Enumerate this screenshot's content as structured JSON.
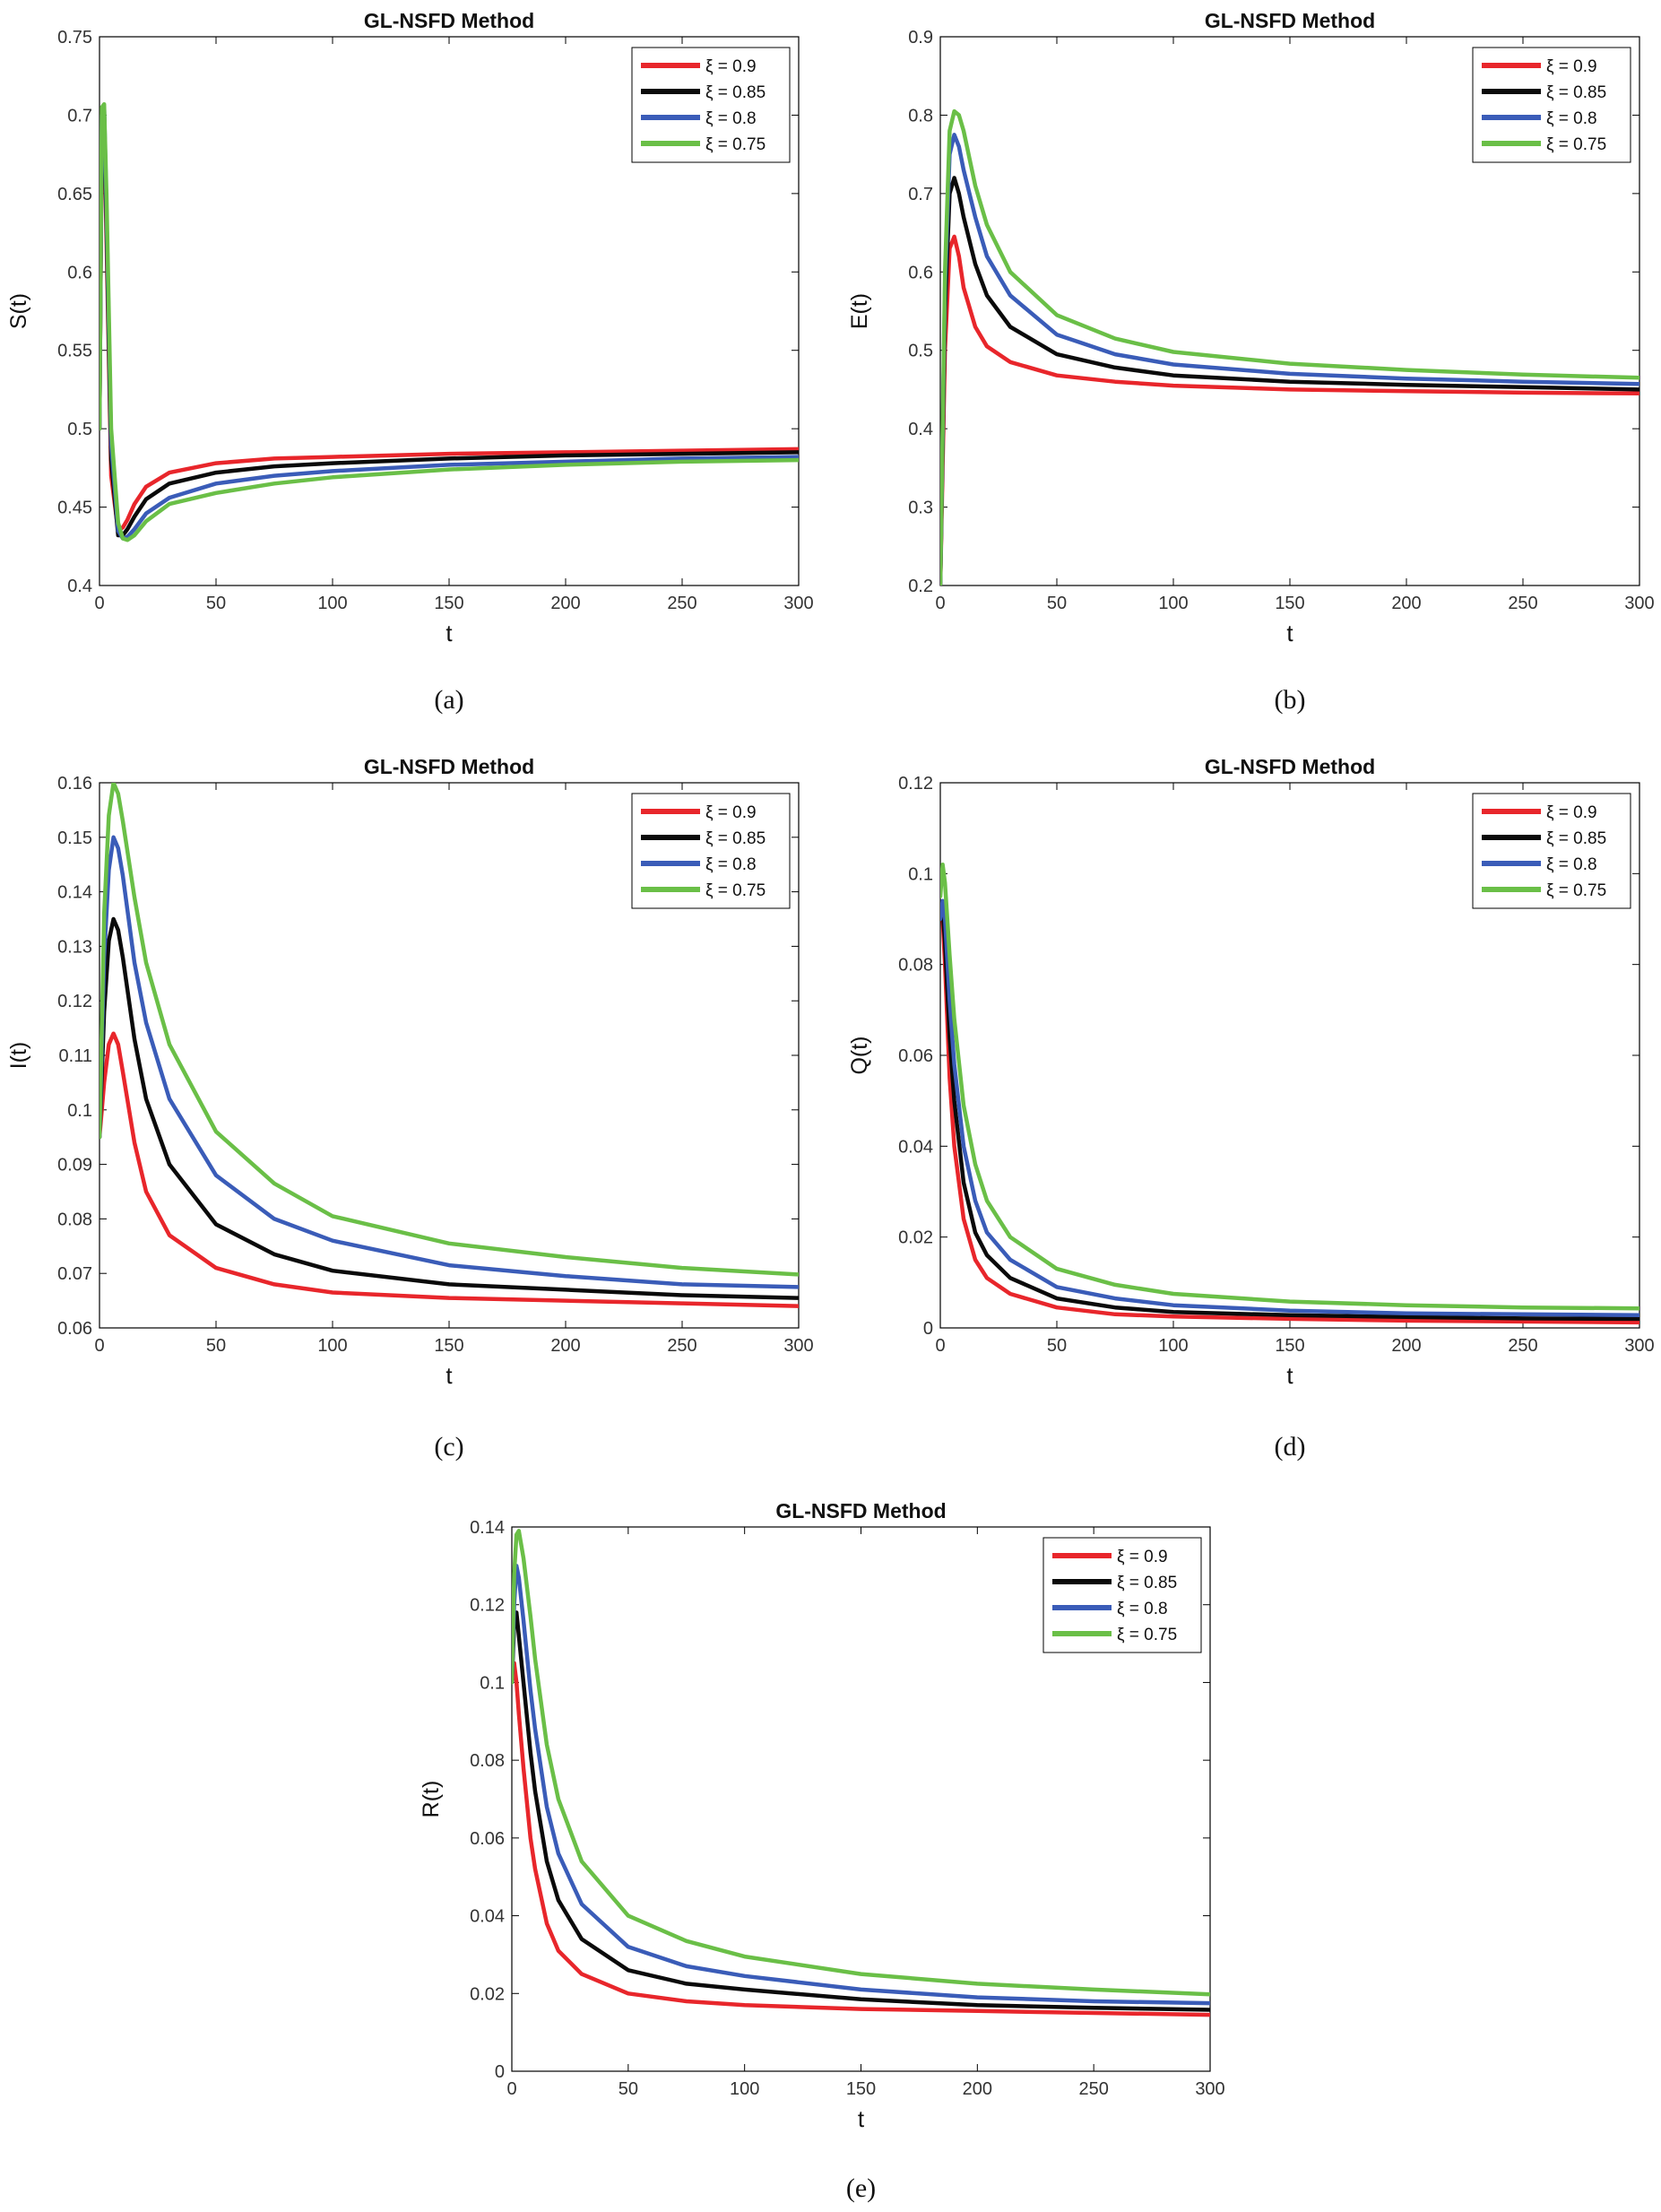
{
  "colors": {
    "red": "#e8262b",
    "black": "#0a0a0a",
    "blue": "#3a5cb8",
    "green": "#6abf47",
    "axis": "#000000",
    "tick": "#333333"
  },
  "chart_data": [
    {
      "type": "line",
      "id": "a",
      "title": "GL-NSFD Method",
      "xlabel": "t",
      "ylabel": "S(t)",
      "caption": "(a)",
      "xlim": [
        0,
        300
      ],
      "ylim": [
        0.4,
        0.75
      ],
      "xticks": [
        0,
        50,
        100,
        150,
        200,
        250,
        300
      ],
      "xtick_labels": [
        "0",
        "50",
        "100",
        "150",
        "200",
        "250",
        "300"
      ],
      "yticks": [
        0.4,
        0.45,
        0.5,
        0.55,
        0.6,
        0.65,
        0.7,
        0.75
      ],
      "ytick_labels": [
        "0.4",
        "0.45",
        "0.5",
        "0.55",
        "0.6",
        "0.65",
        "0.7",
        "0.75"
      ],
      "legend_position": "top-right",
      "x": [
        0,
        1,
        2,
        3,
        5,
        8,
        10,
        12,
        15,
        20,
        30,
        50,
        75,
        100,
        150,
        200,
        250,
        300
      ],
      "series": [
        {
          "name": "ξ = 0.9",
          "color_key": "red",
          "values": [
            0.5,
            0.69,
            0.7,
            0.62,
            0.47,
            0.435,
            0.437,
            0.442,
            0.452,
            0.463,
            0.472,
            0.478,
            0.481,
            0.482,
            0.484,
            0.485,
            0.486,
            0.487
          ]
        },
        {
          "name": "ξ = 0.85",
          "color_key": "black",
          "values": [
            0.5,
            0.695,
            0.702,
            0.63,
            0.48,
            0.432,
            0.432,
            0.436,
            0.444,
            0.455,
            0.465,
            0.472,
            0.476,
            0.478,
            0.481,
            0.483,
            0.484,
            0.485
          ]
        },
        {
          "name": "ξ = 0.8",
          "color_key": "blue",
          "values": [
            0.5,
            0.7,
            0.705,
            0.64,
            0.49,
            0.435,
            0.43,
            0.431,
            0.436,
            0.446,
            0.456,
            0.465,
            0.47,
            0.473,
            0.477,
            0.479,
            0.481,
            0.482
          ]
        },
        {
          "name": "ξ = 0.75",
          "color_key": "green",
          "values": [
            0.5,
            0.705,
            0.707,
            0.65,
            0.5,
            0.44,
            0.43,
            0.429,
            0.432,
            0.441,
            0.452,
            0.459,
            0.465,
            0.469,
            0.474,
            0.477,
            0.479,
            0.48
          ]
        }
      ]
    },
    {
      "type": "line",
      "id": "b",
      "title": "GL-NSFD Method",
      "xlabel": "t",
      "ylabel": "E(t)",
      "caption": "(b)",
      "xlim": [
        0,
        300
      ],
      "ylim": [
        0.2,
        0.9
      ],
      "xticks": [
        0,
        50,
        100,
        150,
        200,
        250,
        300
      ],
      "xtick_labels": [
        "0",
        "50",
        "100",
        "150",
        "200",
        "250",
        "300"
      ],
      "yticks": [
        0.2,
        0.3,
        0.4,
        0.5,
        0.6,
        0.7,
        0.8,
        0.9
      ],
      "ytick_labels": [
        "0.2",
        "0.3",
        "0.4",
        "0.5",
        "0.6",
        "0.7",
        "0.8",
        "0.9"
      ],
      "legend_position": "top-right",
      "x": [
        0,
        2,
        4,
        6,
        8,
        10,
        15,
        20,
        30,
        50,
        75,
        100,
        150,
        200,
        250,
        300
      ],
      "series": [
        {
          "name": "ξ = 0.9",
          "color_key": "red",
          "values": [
            0.2,
            0.5,
            0.63,
            0.645,
            0.62,
            0.58,
            0.53,
            0.505,
            0.485,
            0.468,
            0.46,
            0.455,
            0.45,
            0.448,
            0.446,
            0.445
          ]
        },
        {
          "name": "ξ = 0.85",
          "color_key": "black",
          "values": [
            0.2,
            0.55,
            0.7,
            0.72,
            0.7,
            0.67,
            0.61,
            0.57,
            0.53,
            0.495,
            0.478,
            0.468,
            0.46,
            0.456,
            0.453,
            0.45
          ]
        },
        {
          "name": "ξ = 0.8",
          "color_key": "blue",
          "values": [
            0.2,
            0.58,
            0.75,
            0.775,
            0.76,
            0.73,
            0.67,
            0.62,
            0.57,
            0.52,
            0.495,
            0.482,
            0.47,
            0.464,
            0.46,
            0.457
          ]
        },
        {
          "name": "ξ = 0.75",
          "color_key": "green",
          "values": [
            0.2,
            0.6,
            0.78,
            0.805,
            0.8,
            0.78,
            0.71,
            0.66,
            0.6,
            0.545,
            0.515,
            0.498,
            0.483,
            0.475,
            0.469,
            0.465
          ]
        }
      ]
    },
    {
      "type": "line",
      "id": "c",
      "title": "GL-NSFD Method",
      "xlabel": "t",
      "ylabel": "I(t)",
      "caption": "(c)",
      "xlim": [
        0,
        300
      ],
      "ylim": [
        0.06,
        0.16
      ],
      "xticks": [
        0,
        50,
        100,
        150,
        200,
        250,
        300
      ],
      "xtick_labels": [
        "0",
        "50",
        "100",
        "150",
        "200",
        "250",
        "300"
      ],
      "yticks": [
        0.06,
        0.07,
        0.08,
        0.09,
        0.1,
        0.11,
        0.12,
        0.13,
        0.14,
        0.15,
        0.16
      ],
      "ytick_labels": [
        "0.06",
        "0.07",
        "0.08",
        "0.09",
        "0.1",
        "0.11",
        "0.12",
        "0.13",
        "0.14",
        "0.15",
        "0.16"
      ],
      "legend_position": "top-right",
      "x": [
        0,
        2,
        4,
        6,
        8,
        10,
        15,
        20,
        30,
        50,
        75,
        100,
        150,
        200,
        250,
        300
      ],
      "series": [
        {
          "name": "ξ = 0.9",
          "color_key": "red",
          "values": [
            0.095,
            0.105,
            0.112,
            0.114,
            0.112,
            0.107,
            0.094,
            0.085,
            0.077,
            0.071,
            0.068,
            0.0665,
            0.0655,
            0.065,
            0.0645,
            0.064
          ]
        },
        {
          "name": "ξ = 0.85",
          "color_key": "black",
          "values": [
            0.095,
            0.118,
            0.131,
            0.135,
            0.133,
            0.128,
            0.113,
            0.102,
            0.09,
            0.079,
            0.0735,
            0.0705,
            0.068,
            0.067,
            0.066,
            0.0655
          ]
        },
        {
          "name": "ξ = 0.8",
          "color_key": "blue",
          "values": [
            0.095,
            0.128,
            0.144,
            0.15,
            0.148,
            0.143,
            0.127,
            0.116,
            0.102,
            0.088,
            0.08,
            0.076,
            0.0715,
            0.0695,
            0.068,
            0.0675
          ]
        },
        {
          "name": "ξ = 0.75",
          "color_key": "green",
          "values": [
            0.095,
            0.136,
            0.154,
            0.16,
            0.158,
            0.153,
            0.139,
            0.127,
            0.112,
            0.096,
            0.0865,
            0.0805,
            0.0755,
            0.073,
            0.071,
            0.0698
          ]
        }
      ]
    },
    {
      "type": "line",
      "id": "d",
      "title": "GL-NSFD Method",
      "xlabel": "t",
      "ylabel": "Q(t)",
      "caption": "(d)",
      "xlim": [
        0,
        300
      ],
      "ylim": [
        0,
        0.12
      ],
      "xticks": [
        0,
        50,
        100,
        150,
        200,
        250,
        300
      ],
      "xtick_labels": [
        "0",
        "50",
        "100",
        "150",
        "200",
        "250",
        "300"
      ],
      "yticks": [
        0,
        0.02,
        0.04,
        0.06,
        0.08,
        0.1,
        0.12
      ],
      "ytick_labels": [
        "0",
        "0.02",
        "0.04",
        "0.06",
        "0.08",
        "0.1",
        "0.12"
      ],
      "legend_position": "top-right",
      "x": [
        0,
        1,
        2,
        4,
        6,
        10,
        15,
        20,
        30,
        50,
        75,
        100,
        150,
        200,
        250,
        300
      ],
      "series": [
        {
          "name": "ξ = 0.9",
          "color_key": "red",
          "values": [
            0.09,
            0.09,
            0.08,
            0.055,
            0.04,
            0.024,
            0.015,
            0.011,
            0.0075,
            0.0045,
            0.003,
            0.0025,
            0.002,
            0.0016,
            0.0014,
            0.0012
          ]
        },
        {
          "name": "ξ = 0.85",
          "color_key": "black",
          "values": [
            0.09,
            0.092,
            0.085,
            0.064,
            0.05,
            0.032,
            0.021,
            0.016,
            0.011,
            0.0065,
            0.0045,
            0.0035,
            0.0028,
            0.0024,
            0.0021,
            0.002
          ]
        },
        {
          "name": "ξ = 0.8",
          "color_key": "blue",
          "values": [
            0.09,
            0.094,
            0.09,
            0.072,
            0.058,
            0.04,
            0.028,
            0.021,
            0.015,
            0.009,
            0.0065,
            0.005,
            0.0038,
            0.0032,
            0.003,
            0.0028
          ]
        },
        {
          "name": "ξ = 0.75",
          "color_key": "green",
          "values": [
            0.095,
            0.102,
            0.098,
            0.082,
            0.068,
            0.049,
            0.036,
            0.028,
            0.02,
            0.013,
            0.0095,
            0.0075,
            0.0058,
            0.005,
            0.0045,
            0.0043
          ]
        }
      ]
    },
    {
      "type": "line",
      "id": "e",
      "title": "GL-NSFD Method",
      "xlabel": "t",
      "ylabel": "R(t)",
      "caption": "(e)",
      "xlim": [
        0,
        300
      ],
      "ylim": [
        0,
        0.14
      ],
      "xticks": [
        0,
        50,
        100,
        150,
        200,
        250,
        300
      ],
      "xtick_labels": [
        "0",
        "50",
        "100",
        "150",
        "200",
        "250",
        "300"
      ],
      "yticks": [
        0,
        0.02,
        0.04,
        0.06,
        0.08,
        0.1,
        0.12,
        0.14
      ],
      "ytick_labels": [
        "0",
        "0.02",
        "0.04",
        "0.06",
        "0.08",
        "0.1",
        "0.12",
        "0.14"
      ],
      "legend_position": "top-right",
      "x": [
        0,
        1,
        2,
        3,
        5,
        8,
        10,
        15,
        20,
        30,
        50,
        75,
        100,
        150,
        200,
        250,
        300
      ],
      "series": [
        {
          "name": "ξ = 0.9",
          "color_key": "red",
          "values": [
            0.1,
            0.105,
            0.1,
            0.092,
            0.078,
            0.06,
            0.052,
            0.038,
            0.031,
            0.025,
            0.02,
            0.018,
            0.017,
            0.016,
            0.0155,
            0.015,
            0.0145
          ]
        },
        {
          "name": "ξ = 0.85",
          "color_key": "black",
          "values": [
            0.1,
            0.115,
            0.118,
            0.112,
            0.1,
            0.082,
            0.072,
            0.054,
            0.044,
            0.034,
            0.026,
            0.0225,
            0.021,
            0.0185,
            0.017,
            0.0163,
            0.0158
          ]
        },
        {
          "name": "ξ = 0.8",
          "color_key": "blue",
          "values": [
            0.1,
            0.12,
            0.13,
            0.127,
            0.116,
            0.098,
            0.088,
            0.068,
            0.056,
            0.043,
            0.032,
            0.027,
            0.0245,
            0.021,
            0.019,
            0.018,
            0.0175
          ]
        },
        {
          "name": "ξ = 0.75",
          "color_key": "green",
          "values": [
            0.1,
            0.128,
            0.138,
            0.139,
            0.132,
            0.117,
            0.106,
            0.084,
            0.07,
            0.054,
            0.04,
            0.0335,
            0.0295,
            0.025,
            0.0225,
            0.021,
            0.0198
          ]
        }
      ]
    }
  ]
}
